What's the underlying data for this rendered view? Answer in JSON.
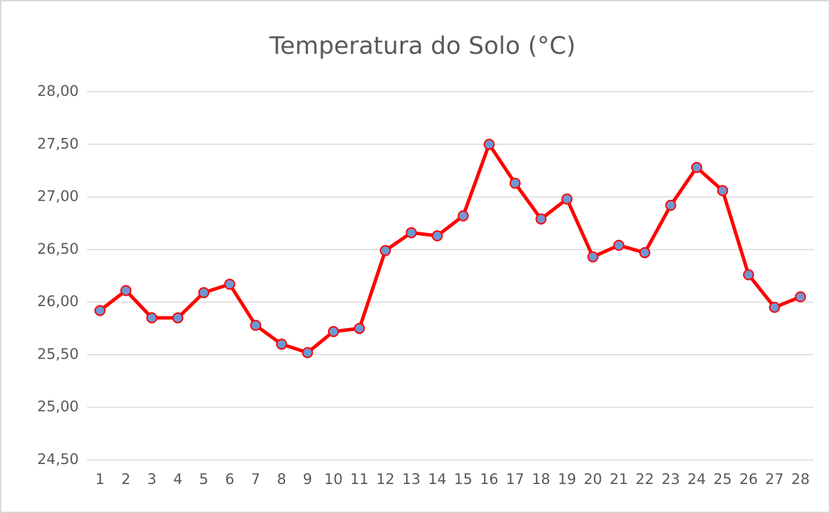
{
  "chart_data": {
    "type": "line",
    "title": "Temperatura do Solo (°C)",
    "categories": [
      "1",
      "2",
      "3",
      "4",
      "5",
      "6",
      "7",
      "8",
      "9",
      "10",
      "11",
      "12",
      "13",
      "14",
      "15",
      "16",
      "17",
      "18",
      "19",
      "20",
      "21",
      "22",
      "23",
      "24",
      "25",
      "26",
      "27",
      "28"
    ],
    "series": [
      {
        "name": "Temperatura do Solo (°C)",
        "color": "#ff0000",
        "marker_color": "#6f97d3",
        "values": [
          25.92,
          26.11,
          25.85,
          25.85,
          26.09,
          26.17,
          25.78,
          25.6,
          25.52,
          25.72,
          25.75,
          26.49,
          26.66,
          26.63,
          26.82,
          27.5,
          27.13,
          26.79,
          26.98,
          26.43,
          26.54,
          26.47,
          26.92,
          27.28,
          27.06,
          26.26,
          25.95,
          26.05
        ]
      }
    ],
    "ylim": [
      24.5,
      28
    ],
    "yticks": [
      {
        "value": 24.5,
        "label": "24,50"
      },
      {
        "value": 25,
        "label": "25,00"
      },
      {
        "value": 25.5,
        "label": "25,50"
      },
      {
        "value": 26,
        "label": "26,00"
      },
      {
        "value": 26.5,
        "label": "26,50"
      },
      {
        "value": 27,
        "label": "27,00"
      },
      {
        "value": 27.5,
        "label": "27,50"
      },
      {
        "value": 28,
        "label": "28,00"
      }
    ],
    "grid": true
  }
}
